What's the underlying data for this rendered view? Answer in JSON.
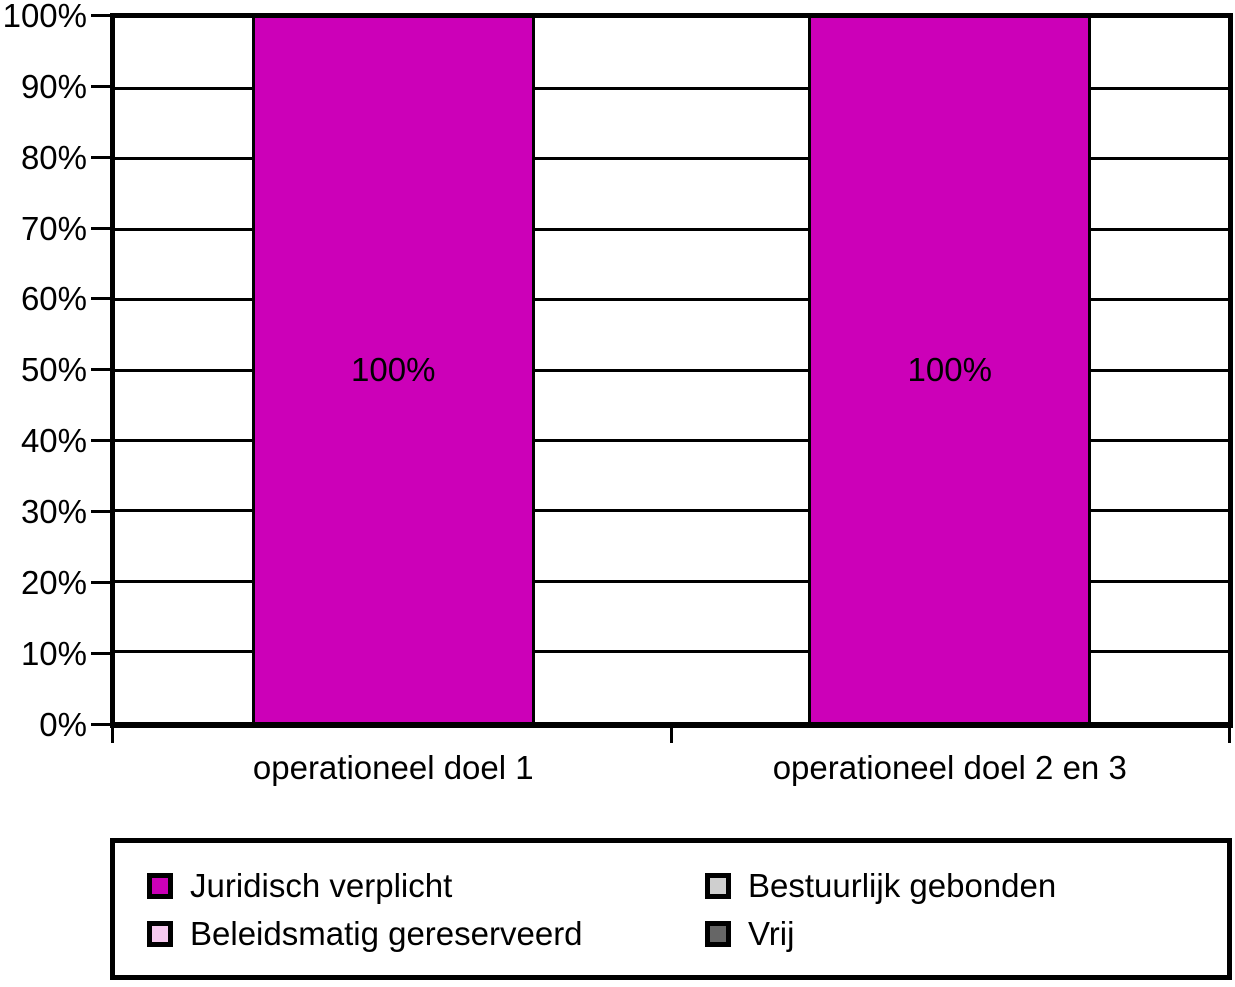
{
  "chart_data": {
    "type": "bar",
    "categories": [
      "operationeel doel 1",
      "operationeel doel 2 en 3"
    ],
    "series": [
      {
        "name": "Juridisch verplicht",
        "color": "#CC00B8",
        "values": [
          100,
          100
        ]
      },
      {
        "name": "Bestuurlijk gebonden",
        "color": "#CFCFCF",
        "values": [
          0,
          0
        ]
      },
      {
        "name": "Beleidsmatig gereserveerd",
        "color": "#F6C9EF",
        "values": [
          0,
          0
        ]
      },
      {
        "name": "Vrij",
        "color": "#666666",
        "values": [
          0,
          0
        ]
      }
    ],
    "bar_labels": [
      "100%",
      "100%"
    ],
    "ylim": [
      0,
      100
    ],
    "ytick_step": 10,
    "ytick_labels": [
      "0%",
      "10%",
      "20%",
      "30%",
      "40%",
      "50%",
      "60%",
      "70%",
      "80%",
      "90%",
      "100%"
    ],
    "grid": "horizontal",
    "axis_color": "#000000",
    "legend_position": "bottom"
  },
  "legend": {
    "items": [
      {
        "label": "Juridisch verplicht",
        "color": "#CC00B8"
      },
      {
        "label": "Bestuurlijk gebonden",
        "color": "#CFCFCF"
      },
      {
        "label": "Beleidsmatig gereserveerd",
        "color": "#F6C9EF"
      },
      {
        "label": "Vrij",
        "color": "#666666"
      }
    ]
  }
}
